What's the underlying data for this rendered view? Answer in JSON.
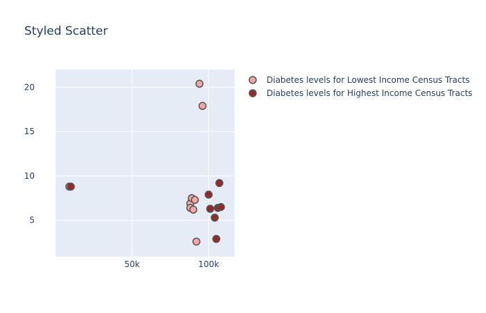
{
  "chart_data": {
    "type": "scatter",
    "title": "Styled Scatter",
    "xlabel": "",
    "ylabel": "",
    "xlim": [
      0,
      117000
    ],
    "ylim": [
      0.9,
      22
    ],
    "x_ticks": [
      {
        "value": 50000,
        "label": "50k"
      },
      {
        "value": 100000,
        "label": "100k"
      }
    ],
    "y_ticks": [
      {
        "value": 5,
        "label": "5"
      },
      {
        "value": 10,
        "label": "10"
      },
      {
        "value": 15,
        "label": "15"
      },
      {
        "value": 20,
        "label": "20"
      }
    ],
    "grid": true,
    "legend_position": "top-right",
    "series": [
      {
        "name": "Diabetes levels for Lowest Income Census Tracts",
        "color": "#f4a6a6",
        "edge_color": "#555555",
        "points": [
          {
            "x": 88000,
            "y": 6.9
          },
          {
            "x": 88000,
            "y": 6.4
          },
          {
            "x": 89000,
            "y": 7.5
          },
          {
            "x": 90000,
            "y": 6.2
          },
          {
            "x": 91000,
            "y": 7.3
          },
          {
            "x": 92000,
            "y": 2.6
          },
          {
            "x": 94000,
            "y": 20.4
          },
          {
            "x": 96000,
            "y": 17.9
          },
          {
            "x": 9000,
            "y": 8.8
          }
        ]
      },
      {
        "name": "Diabetes levels for Highest Income Census Tracts",
        "color": "#962a2a",
        "edge_color": "#555555",
        "points": [
          {
            "x": 10000,
            "y": 8.8
          },
          {
            "x": 100000,
            "y": 7.9
          },
          {
            "x": 101000,
            "y": 6.3
          },
          {
            "x": 104000,
            "y": 5.3
          },
          {
            "x": 105000,
            "y": 2.9
          },
          {
            "x": 106000,
            "y": 6.4
          },
          {
            "x": 107000,
            "y": 9.2
          },
          {
            "x": 108000,
            "y": 6.5
          }
        ]
      }
    ]
  }
}
